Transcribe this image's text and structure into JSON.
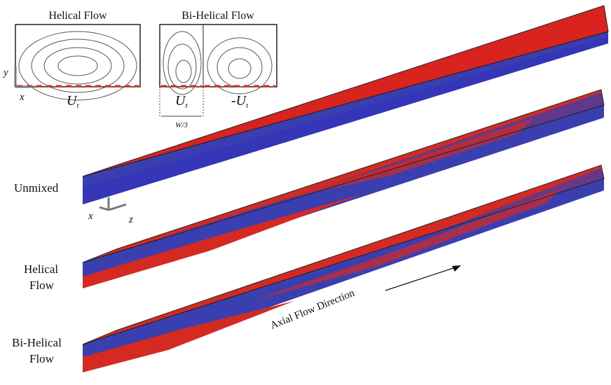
{
  "helical_inset": {
    "title": "Helical Flow",
    "axis_x": "x",
    "axis_y": "y",
    "velocity": {
      "symbol": "U",
      "subscript": "t"
    }
  },
  "bi_helical_inset": {
    "title": "Bi-Helical Flow",
    "left_velocity": {
      "symbol": "U",
      "subscript": "t"
    },
    "right_velocity": {
      "symbol": "-U",
      "subscript": "t"
    },
    "width_label": "W/3"
  },
  "main_axes": {
    "x": "x",
    "z": "z"
  },
  "rows": [
    {
      "lines": [
        "Unmixed"
      ]
    },
    {
      "lines": [
        "Helical",
        "Flow"
      ]
    },
    {
      "lines": [
        "Bi-Helical",
        "Flow"
      ]
    }
  ],
  "axial_label": "Axial Flow Direction"
}
